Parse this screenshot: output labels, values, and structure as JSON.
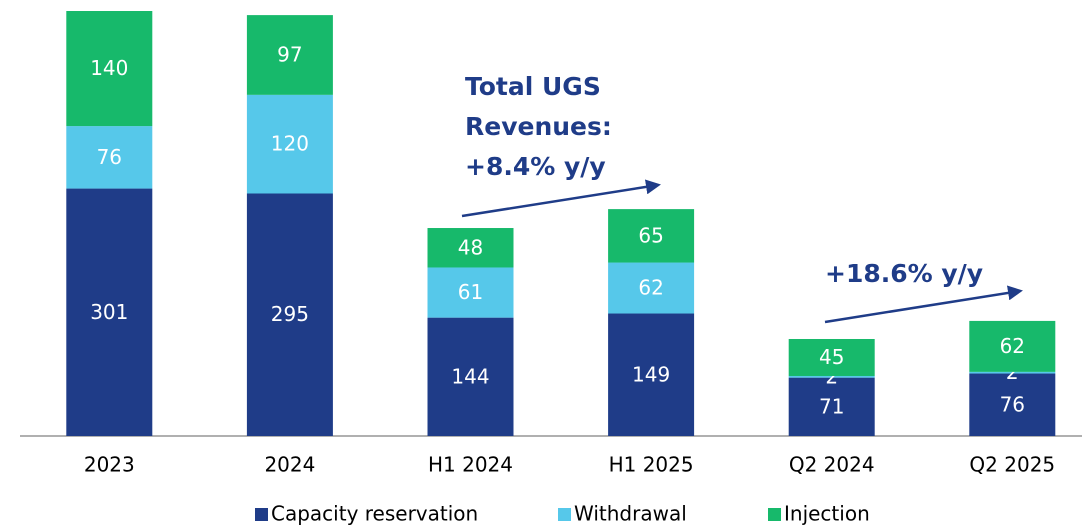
{
  "chart_data": {
    "type": "stacked_bar",
    "categories": [
      "2023",
      "2024",
      "H1 2024",
      "H1 2025",
      "Q2 2024",
      "Q2 2025"
    ],
    "series": [
      {
        "name": "Capacity reservation",
        "color": "#1f3c88",
        "values": [
          301,
          295,
          144,
          149,
          71,
          76
        ]
      },
      {
        "name": "Withdrawal",
        "color": "#56c8ea",
        "values": [
          76,
          120,
          61,
          62,
          2,
          2
        ]
      },
      {
        "name": "Injection",
        "color": "#17b96b",
        "values": [
          140,
          97,
          48,
          65,
          45,
          62
        ]
      }
    ],
    "annotations": [
      {
        "lines": [
          "Total UGS",
          "Revenues:",
          "+8.4% y/y"
        ]
      },
      {
        "lines": [
          "+18.6% y/y"
        ]
      }
    ],
    "legend": "bottom"
  }
}
